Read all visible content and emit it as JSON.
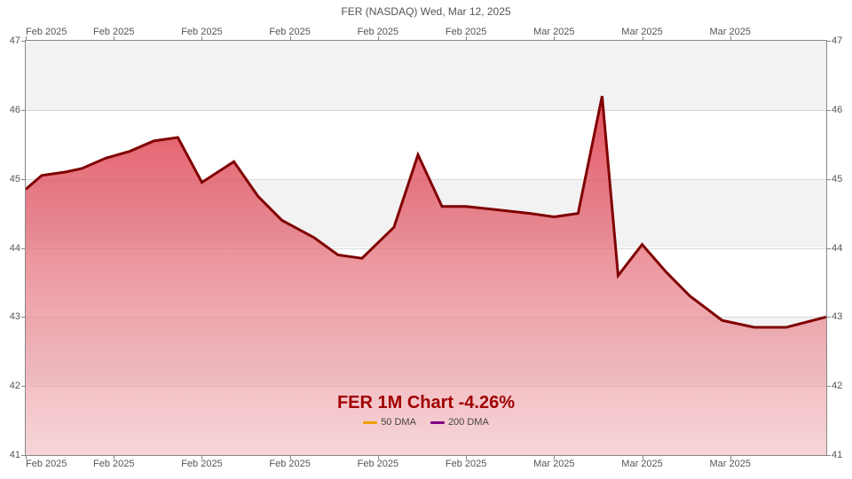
{
  "chart": {
    "type": "area",
    "title": "FER (NASDAQ) Wed, Mar 12, 2025",
    "title_fontsize": 12,
    "watermark": "FER 1M Chart -4.26%",
    "watermark_fontsize": 20,
    "watermark_color": "#a00000",
    "background_color": "#ffffff",
    "plot_bg_band_color": "#f2f2f2",
    "grid_line_color": "#d8d8d8",
    "axis_color": "#888888",
    "label_color": "#555555",
    "label_fontsize": 11,
    "line_color": "#800000",
    "line_width": 1.5,
    "area_top_color": "#dc3545",
    "area_bottom_color": "#f0b8bd",
    "area_top_opacity": 0.85,
    "area_bottom_opacity": 0.6,
    "ylim": [
      41,
      47
    ],
    "ytick_step": 1,
    "yticks": [
      41,
      42,
      43,
      44,
      45,
      46,
      47
    ],
    "xtick_positions": [
      0,
      0.11,
      0.22,
      0.33,
      0.44,
      0.55,
      0.66,
      0.77,
      0.88
    ],
    "xtick_labels": [
      "Feb 2025",
      "Feb 2025",
      "Feb 2025",
      "Feb 2025",
      "Feb 2025",
      "Feb 2025",
      "Mar 2025",
      "Mar 2025",
      "Mar 2025"
    ],
    "data": {
      "x_frac": [
        0.0,
        0.02,
        0.05,
        0.07,
        0.1,
        0.13,
        0.16,
        0.19,
        0.22,
        0.26,
        0.29,
        0.32,
        0.36,
        0.39,
        0.42,
        0.46,
        0.49,
        0.52,
        0.55,
        0.59,
        0.63,
        0.66,
        0.69,
        0.72,
        0.74,
        0.77,
        0.8,
        0.83,
        0.87,
        0.91,
        0.95,
        1.0
      ],
      "y": [
        44.85,
        45.05,
        45.1,
        45.15,
        45.3,
        45.4,
        45.55,
        45.6,
        44.95,
        45.25,
        44.75,
        44.4,
        44.15,
        43.9,
        43.85,
        44.3,
        45.35,
        44.6,
        44.6,
        44.55,
        44.5,
        44.45,
        44.5,
        46.2,
        43.6,
        44.05,
        43.65,
        43.3,
        42.95,
        42.85,
        42.85,
        43.0
      ]
    },
    "legend": {
      "items": [
        {
          "label": "50 DMA",
          "color": "#f0a000"
        },
        {
          "label": "200 DMA",
          "color": "#800080"
        }
      ]
    }
  }
}
